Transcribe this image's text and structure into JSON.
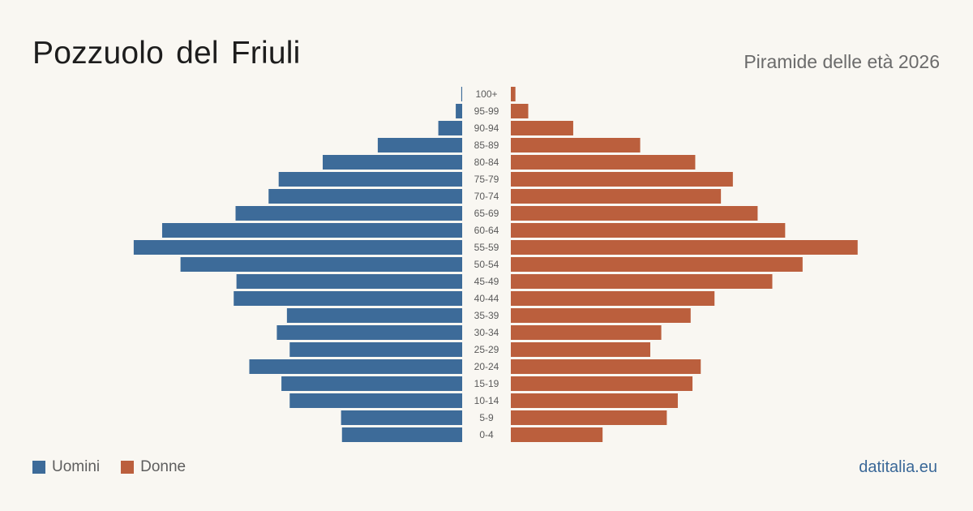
{
  "title": "Pozzuolo del Friuli",
  "subtitle": "Piramide delle età 2026",
  "source": "datitalia.eu",
  "legend": {
    "men": "Uomini",
    "women": "Donne"
  },
  "colors": {
    "men": "#3d6b99",
    "women": "#bb5f3d",
    "background": "#f9f7f2"
  },
  "chart_data": {
    "type": "bar",
    "orientation": "horizontal-butterfly",
    "title": "Pozzuolo del Friuli",
    "subtitle": "Piramide delle età 2026",
    "categories": [
      "100+",
      "95-99",
      "90-94",
      "85-89",
      "80-84",
      "75-79",
      "70-74",
      "65-69",
      "60-64",
      "55-59",
      "50-54",
      "45-49",
      "40-44",
      "35-39",
      "30-34",
      "25-29",
      "20-24",
      "15-19",
      "10-14",
      "5-9",
      "0-4"
    ],
    "series": [
      {
        "name": "Uomini",
        "values": [
          1,
          7,
          26,
          92,
          152,
          200,
          211,
          247,
          327,
          358,
          307,
          246,
          249,
          191,
          202,
          188,
          232,
          197,
          188,
          132,
          131
        ]
      },
      {
        "name": "Donne",
        "values": [
          5,
          19,
          68,
          141,
          201,
          242,
          229,
          269,
          299,
          378,
          318,
          285,
          222,
          196,
          164,
          152,
          207,
          198,
          182,
          170,
          100
        ]
      }
    ],
    "xlim": [
      0,
      380
    ],
    "legend_position": "bottom-left",
    "grid": false
  }
}
